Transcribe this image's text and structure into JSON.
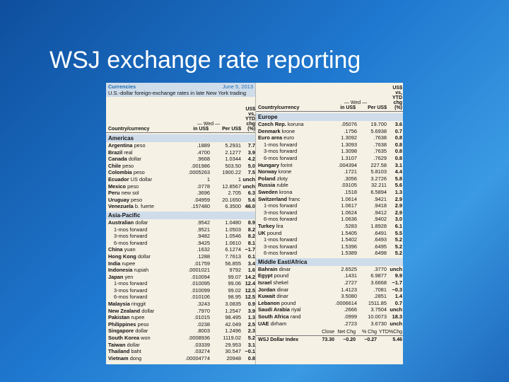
{
  "title": "WSJ exchange rate reporting",
  "table": {
    "name": "Currencies",
    "date": "June 5, 2013",
    "subtitle": "U.S.-dollar foreign-exchange rates in late New York trading",
    "columns": {
      "country": "Country/currency",
      "wed": "— Wed —",
      "in_usd": "in US$",
      "per_usd": "Per US$",
      "ytd": [
        "US$ vs,",
        "YTD chg",
        "(%)"
      ]
    },
    "left": [
      {
        "section": "Americas",
        "rows": [
          [
            "Argentina",
            "peso",
            ".1889",
            "5.2931",
            "7.7"
          ],
          [
            "Brazil",
            "real",
            ".4700",
            "2.1277",
            "3.9"
          ],
          [
            "Canada",
            "dollar",
            ".9668",
            "1.0344",
            "4.2"
          ],
          [
            "Chile",
            "peso",
            ".001986",
            "503.50",
            "5.0"
          ],
          [
            "Colombia",
            "peso",
            ".0005263",
            "1900.22",
            "7.5"
          ],
          [
            "Ecuador",
            "US dollar",
            "1",
            "1",
            "unch"
          ],
          [
            "Mexico",
            "peso",
            ".0778",
            "12.8567",
            "unch"
          ],
          [
            "Peru",
            "new sol",
            ".3696",
            "2.705",
            "6.3"
          ],
          [
            "Uruguay",
            "peso",
            ".04959",
            "20.1650",
            "5.6"
          ],
          [
            "Venezuela",
            "b. fuerte",
            ".157480",
            "6.3500",
            "46.0"
          ]
        ]
      },
      {
        "section": "Asia-Pacific",
        "rows": [
          [
            "Australian",
            "dollar",
            ".9542",
            "1.0480",
            "8.9"
          ],
          [
            "1-mos forward",
            ".9521",
            "1.0503",
            "8.2"
          ],
          [
            "3-mos forward",
            ".9482",
            "1.0546",
            "8.2"
          ],
          [
            "6-mos forward",
            ".9425",
            "1.0610",
            "8.1"
          ],
          [
            "China",
            "yuan",
            ".1632",
            "6.1274",
            "−1.7"
          ],
          [
            "Hong Kong",
            "dollar",
            ".1288",
            "7.7613",
            "0.1"
          ],
          [
            "India",
            "rupee",
            ".01759",
            "56.855",
            "3.4"
          ],
          [
            "Indonesia",
            "rupiah",
            ".0001021",
            "9792",
            "1.6"
          ],
          [
            "Japan",
            "yen",
            ".010094",
            "99.07",
            "14.2"
          ],
          [
            "1-mos forward",
            ".010095",
            "99.06",
            "12.4"
          ],
          [
            "3-mos forward",
            ".010099",
            "99.02",
            "12.5"
          ],
          [
            "6-mos forward",
            ".010106",
            "98.95",
            "12.5"
          ],
          [
            "Malaysia",
            "ringgit",
            ".3243",
            "3.0835",
            "0.9"
          ],
          [
            "New Zealand",
            "dollar",
            ".7970",
            "1.2547",
            "3.9"
          ],
          [
            "Pakistan",
            "rupee",
            ".01015",
            "98.495",
            "1.3"
          ],
          [
            "Philippines",
            "peso",
            ".0238",
            "42.049",
            "2.5"
          ],
          [
            "Singapore",
            "dollar",
            ".8003",
            "1.2496",
            "2.3"
          ],
          [
            "South Korea",
            "won",
            ".0008936",
            "1119.02",
            "5.2"
          ],
          [
            "Taiwan",
            "dollar",
            ".03339",
            "29.953",
            "3.1"
          ],
          [
            "Thailand",
            "baht",
            ".03274",
            "30.547",
            "−0.1"
          ],
          [
            "Vietnam",
            "dong",
            ".00004774",
            "20948",
            "0.8"
          ]
        ]
      }
    ],
    "right": [
      {
        "section": "Europe",
        "rows": [
          [
            "Czech Rep.",
            "koruna",
            ".05076",
            "19.700",
            "3.6"
          ],
          [
            "Denmark",
            "krone",
            ".1756",
            "5.6938",
            "0.7"
          ],
          [
            "Euro area",
            "euro",
            "1.3092",
            ".7638",
            "0.8"
          ],
          [
            "1-mos forward",
            "1.3093",
            ".7638",
            "0.8"
          ],
          [
            "3-mos forward",
            "1.3098",
            ".7635",
            "0.8"
          ],
          [
            "6-mos forward",
            "1.3107",
            ".7629",
            "0.8"
          ],
          [
            "Hungary",
            "forint",
            ".004394",
            "227.58",
            "3.1"
          ],
          [
            "Norway",
            "krone",
            ".1721",
            "5.8103",
            "4.4"
          ],
          [
            "Poland",
            "zloty",
            ".3056",
            "3.2726",
            "5.8"
          ],
          [
            "Russia",
            "ruble",
            ".03105",
            "32.211",
            "5.6"
          ],
          [
            "Sweden",
            "krona",
            ".1518",
            "6.5894",
            "1.3"
          ],
          [
            "Switzerland",
            "franc",
            "1.0614",
            ".9421",
            "2.9"
          ],
          [
            "1-mos forward",
            "1.0617",
            ".9418",
            "2.9"
          ],
          [
            "3-mos forward",
            "1.0624",
            ".9412",
            "2.9"
          ],
          [
            "6-mos forward",
            "1.0636",
            ".9402",
            "3.0"
          ],
          [
            "Turkey",
            "lira",
            ".5283",
            "1.8928",
            "6.1"
          ],
          [
            "UK",
            "pound",
            "1.5405",
            ".6491",
            "5.5"
          ],
          [
            "1-mos forward",
            "1.5402",
            ".6493",
            "5.2"
          ],
          [
            "3-mos forward",
            "1.5396",
            ".6495",
            "5.2"
          ],
          [
            "6-mos forward",
            "1.5389",
            ".6498",
            "5.2"
          ]
        ]
      },
      {
        "section": "Middle East/Africa",
        "rows": [
          [
            "Bahrain",
            "dinar",
            "2.6525",
            ".3770",
            "unch"
          ],
          [
            "Egypt",
            "pound",
            ".1431",
            "6.9877",
            "9.9"
          ],
          [
            "Israel",
            "shekel",
            ".2727",
            "3.6668",
            "−1.7"
          ],
          [
            "Jordan",
            "dinar",
            "1.4123",
            ".7081",
            "−0.3"
          ],
          [
            "Kuwait",
            "dinar",
            "3.5080",
            ".2851",
            "1.4"
          ],
          [
            "Lebanon",
            "pound",
            ".0006614",
            "1511.85",
            "0.7"
          ],
          [
            "Saudi Arabia",
            "riyal",
            ".2666",
            "3.7504",
            "unch"
          ],
          [
            "South Africa",
            "rand",
            ".0999",
            "10.0073",
            "18.3"
          ],
          [
            "UAE",
            "dirham",
            ".2723",
            "3.6730",
            "unch"
          ]
        ]
      }
    ],
    "index": {
      "headers": [
        "Close",
        "Net Chg",
        "% Chg",
        "YTD%Chg"
      ],
      "name": "WSJ Dollar Index",
      "values": [
        "73.30",
        "−0.20",
        "−0.27",
        "5.46"
      ]
    }
  }
}
